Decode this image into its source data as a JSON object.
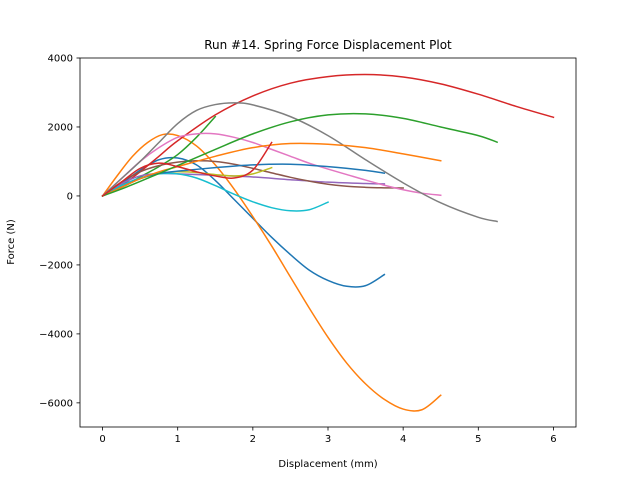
{
  "chart_data": {
    "type": "line",
    "title": "Run #14. Spring Force Displacement Plot",
    "xlabel": "Displacement (mm)",
    "ylabel": "Force (N)",
    "xlim": [
      -0.3,
      6.3
    ],
    "ylim": [
      -6700,
      4000
    ],
    "xticks": [
      0,
      1,
      2,
      3,
      4,
      5,
      6
    ],
    "yticks": [
      -6000,
      -4000,
      -2000,
      0,
      2000,
      4000
    ],
    "grid": false,
    "legend": "none",
    "series": [
      {
        "color": "#1f77b4",
        "points": [
          [
            0,
            0
          ],
          [
            0.25,
            350
          ],
          [
            0.5,
            750
          ],
          [
            0.75,
            1050
          ],
          [
            1.0,
            1100
          ],
          [
            1.25,
            900
          ],
          [
            1.5,
            450
          ],
          [
            1.75,
            -100
          ],
          [
            2.0,
            -650
          ],
          [
            2.25,
            -1200
          ],
          [
            2.5,
            -1700
          ],
          [
            2.75,
            -2150
          ],
          [
            3.0,
            -2450
          ],
          [
            3.25,
            -2620
          ],
          [
            3.5,
            -2600
          ],
          [
            3.75,
            -2280
          ]
        ]
      },
      {
        "color": "#ff7f0e",
        "points": [
          [
            0,
            0
          ],
          [
            0.2,
            600
          ],
          [
            0.4,
            1150
          ],
          [
            0.6,
            1550
          ],
          [
            0.8,
            1780
          ],
          [
            1.0,
            1750
          ],
          [
            1.25,
            1450
          ],
          [
            1.5,
            900
          ],
          [
            1.75,
            200
          ],
          [
            2.0,
            -600
          ],
          [
            2.25,
            -1450
          ],
          [
            2.5,
            -2350
          ],
          [
            2.75,
            -3250
          ],
          [
            3.0,
            -4100
          ],
          [
            3.25,
            -4850
          ],
          [
            3.5,
            -5450
          ],
          [
            3.75,
            -5900
          ],
          [
            4.0,
            -6180
          ],
          [
            4.25,
            -6200
          ],
          [
            4.5,
            -5780
          ]
        ]
      },
      {
        "color": "#2ca02c",
        "points": [
          [
            0,
            0
          ],
          [
            0.25,
            250
          ],
          [
            0.5,
            550
          ],
          [
            0.75,
            850
          ],
          [
            1.0,
            1200
          ],
          [
            1.25,
            1700
          ],
          [
            1.5,
            2300
          ]
        ]
      },
      {
        "color": "#d62728",
        "points": [
          [
            0,
            0
          ],
          [
            0.25,
            300
          ],
          [
            0.5,
            700
          ],
          [
            0.75,
            1150
          ],
          [
            1.0,
            1600
          ],
          [
            1.5,
            2350
          ],
          [
            2.0,
            2900
          ],
          [
            2.5,
            3270
          ],
          [
            3.0,
            3460
          ],
          [
            3.5,
            3520
          ],
          [
            4.0,
            3450
          ],
          [
            4.5,
            3250
          ],
          [
            5.0,
            2950
          ],
          [
            5.5,
            2600
          ],
          [
            6.0,
            2280
          ]
        ]
      },
      {
        "color": "#9467bd",
        "points": [
          [
            0,
            0
          ],
          [
            0.25,
            350
          ],
          [
            0.5,
            580
          ],
          [
            0.75,
            650
          ],
          [
            1.0,
            640
          ],
          [
            1.5,
            600
          ],
          [
            2.0,
            550
          ],
          [
            2.5,
            470
          ],
          [
            3.0,
            400
          ],
          [
            3.5,
            360
          ],
          [
            3.75,
            350
          ]
        ]
      },
      {
        "color": "#8c564b",
        "points": [
          [
            0,
            0
          ],
          [
            0.25,
            400
          ],
          [
            0.5,
            700
          ],
          [
            0.75,
            880
          ],
          [
            1.0,
            980
          ],
          [
            1.25,
            1020
          ],
          [
            1.5,
            1000
          ],
          [
            1.75,
            920
          ],
          [
            2.0,
            800
          ],
          [
            2.25,
            670
          ],
          [
            2.5,
            540
          ],
          [
            2.75,
            430
          ],
          [
            3.0,
            340
          ],
          [
            3.25,
            280
          ],
          [
            3.5,
            250
          ],
          [
            3.75,
            235
          ],
          [
            4.0,
            230
          ]
        ]
      },
      {
        "color": "#e377c2",
        "points": [
          [
            0,
            0
          ],
          [
            0.25,
            500
          ],
          [
            0.5,
            1000
          ],
          [
            0.75,
            1400
          ],
          [
            1.0,
            1700
          ],
          [
            1.25,
            1800
          ],
          [
            1.5,
            1800
          ],
          [
            1.75,
            1700
          ],
          [
            2.0,
            1550
          ],
          [
            2.25,
            1350
          ],
          [
            2.5,
            1150
          ],
          [
            2.75,
            950
          ],
          [
            3.0,
            780
          ],
          [
            3.25,
            620
          ],
          [
            3.5,
            460
          ],
          [
            3.75,
            310
          ],
          [
            4.0,
            180
          ],
          [
            4.25,
            80
          ],
          [
            4.5,
            20
          ]
        ]
      },
      {
        "color": "#7f7f7f",
        "points": [
          [
            0,
            0
          ],
          [
            0.25,
            500
          ],
          [
            0.5,
            1000
          ],
          [
            0.75,
            1550
          ],
          [
            1.0,
            2100
          ],
          [
            1.25,
            2480
          ],
          [
            1.5,
            2650
          ],
          [
            1.75,
            2700
          ],
          [
            2.0,
            2640
          ],
          [
            2.5,
            2300
          ],
          [
            3.0,
            1750
          ],
          [
            3.5,
            1050
          ],
          [
            4.0,
            380
          ],
          [
            4.5,
            -200
          ],
          [
            5.0,
            -620
          ],
          [
            5.25,
            -740
          ]
        ]
      },
      {
        "color": "#bcbd22",
        "points": [
          [
            0,
            0
          ],
          [
            0.25,
            250
          ],
          [
            0.5,
            500
          ],
          [
            0.75,
            650
          ],
          [
            1.0,
            700
          ],
          [
            1.25,
            680
          ],
          [
            1.5,
            620
          ],
          [
            1.75,
            580
          ],
          [
            2.0,
            640
          ],
          [
            2.25,
            820
          ]
        ]
      },
      {
        "color": "#17becf",
        "points": [
          [
            0,
            0
          ],
          [
            0.25,
            300
          ],
          [
            0.5,
            520
          ],
          [
            0.75,
            640
          ],
          [
            1.0,
            640
          ],
          [
            1.25,
            520
          ],
          [
            1.5,
            300
          ],
          [
            1.75,
            50
          ],
          [
            2.0,
            -170
          ],
          [
            2.25,
            -340
          ],
          [
            2.5,
            -430
          ],
          [
            2.75,
            -400
          ],
          [
            3.0,
            -180
          ]
        ]
      },
      {
        "color": "#1f77b4",
        "points": [
          [
            0,
            0
          ],
          [
            0.25,
            250
          ],
          [
            0.5,
            500
          ],
          [
            0.75,
            650
          ],
          [
            1.0,
            720
          ],
          [
            1.5,
            820
          ],
          [
            2.0,
            900
          ],
          [
            2.5,
            920
          ],
          [
            3.0,
            850
          ],
          [
            3.5,
            740
          ],
          [
            3.75,
            660
          ]
        ]
      },
      {
        "color": "#ff7f0e",
        "points": [
          [
            0,
            0
          ],
          [
            0.25,
            250
          ],
          [
            0.5,
            500
          ],
          [
            0.75,
            700
          ],
          [
            1.0,
            850
          ],
          [
            1.5,
            1150
          ],
          [
            2.0,
            1400
          ],
          [
            2.5,
            1520
          ],
          [
            3.0,
            1500
          ],
          [
            3.5,
            1400
          ],
          [
            4.0,
            1220
          ],
          [
            4.5,
            1020
          ]
        ]
      },
      {
        "color": "#2ca02c",
        "points": [
          [
            0,
            0
          ],
          [
            0.25,
            200
          ],
          [
            0.5,
            420
          ],
          [
            0.75,
            650
          ],
          [
            1.0,
            880
          ],
          [
            1.5,
            1350
          ],
          [
            2.0,
            1800
          ],
          [
            2.5,
            2150
          ],
          [
            3.0,
            2350
          ],
          [
            3.5,
            2380
          ],
          [
            4.0,
            2250
          ],
          [
            4.5,
            2000
          ],
          [
            5.0,
            1750
          ],
          [
            5.25,
            1560
          ]
        ]
      },
      {
        "color": "#d62728",
        "points": [
          [
            0,
            0
          ],
          [
            0.25,
            400
          ],
          [
            0.5,
            800
          ],
          [
            0.75,
            950
          ],
          [
            1.0,
            850
          ],
          [
            1.25,
            700
          ],
          [
            1.5,
            580
          ],
          [
            1.75,
            520
          ],
          [
            2.0,
            750
          ],
          [
            2.25,
            1550
          ]
        ]
      }
    ]
  }
}
